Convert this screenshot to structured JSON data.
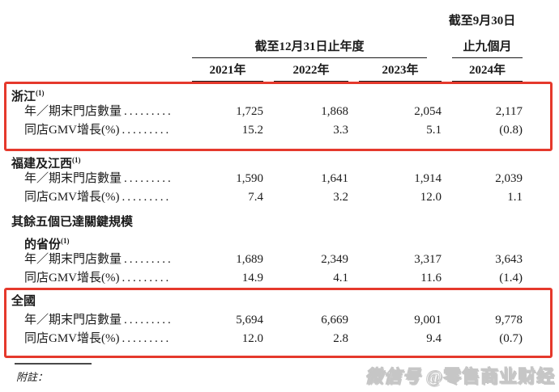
{
  "colors": {
    "highlight_red": "#e5392c",
    "text": "#1b1b1b"
  },
  "header": {
    "nine_months_line1": "截至9月30日",
    "nine_months_line2": "止九個月",
    "annual_period": "截至12月31日止年度",
    "years": [
      "2021年",
      "2022年",
      "2023年",
      "2024年"
    ]
  },
  "row_labels": {
    "stores": "年／期末門店數量",
    "gmv": "同店GMV增長(%)",
    "dots": "........."
  },
  "sections": [
    {
      "name": "浙江",
      "sup": "(1)",
      "stores": [
        "1,725",
        "1,868",
        "2,054",
        "2,117"
      ],
      "gmv": [
        "15.2",
        "3.3",
        "5.1",
        "(0.8)"
      ]
    },
    {
      "name": "福建及江西",
      "sup": "(1)",
      "stores": [
        "1,590",
        "1,641",
        "1,914",
        "2,039"
      ],
      "gmv": [
        "7.4",
        "3.2",
        "12.0",
        "1.1"
      ]
    },
    {
      "name": "其餘五個已達關鍵規模",
      "name_line2": "的省份",
      "sup": "(1)",
      "stores": [
        "1,689",
        "2,349",
        "3,317",
        "3,643"
      ],
      "gmv": [
        "14.9",
        "4.1",
        "11.6",
        "(1.4)"
      ]
    },
    {
      "name": "全國",
      "sup": "",
      "stores": [
        "5,694",
        "6,669",
        "9,001",
        "9,778"
      ],
      "gmv": [
        "12.0",
        "2.8",
        "9.4",
        "(0.7)"
      ]
    }
  ],
  "footnote_label": "附註：",
  "watermark": {
    "prefix": "微信号",
    "account": "@零售商业财经"
  }
}
